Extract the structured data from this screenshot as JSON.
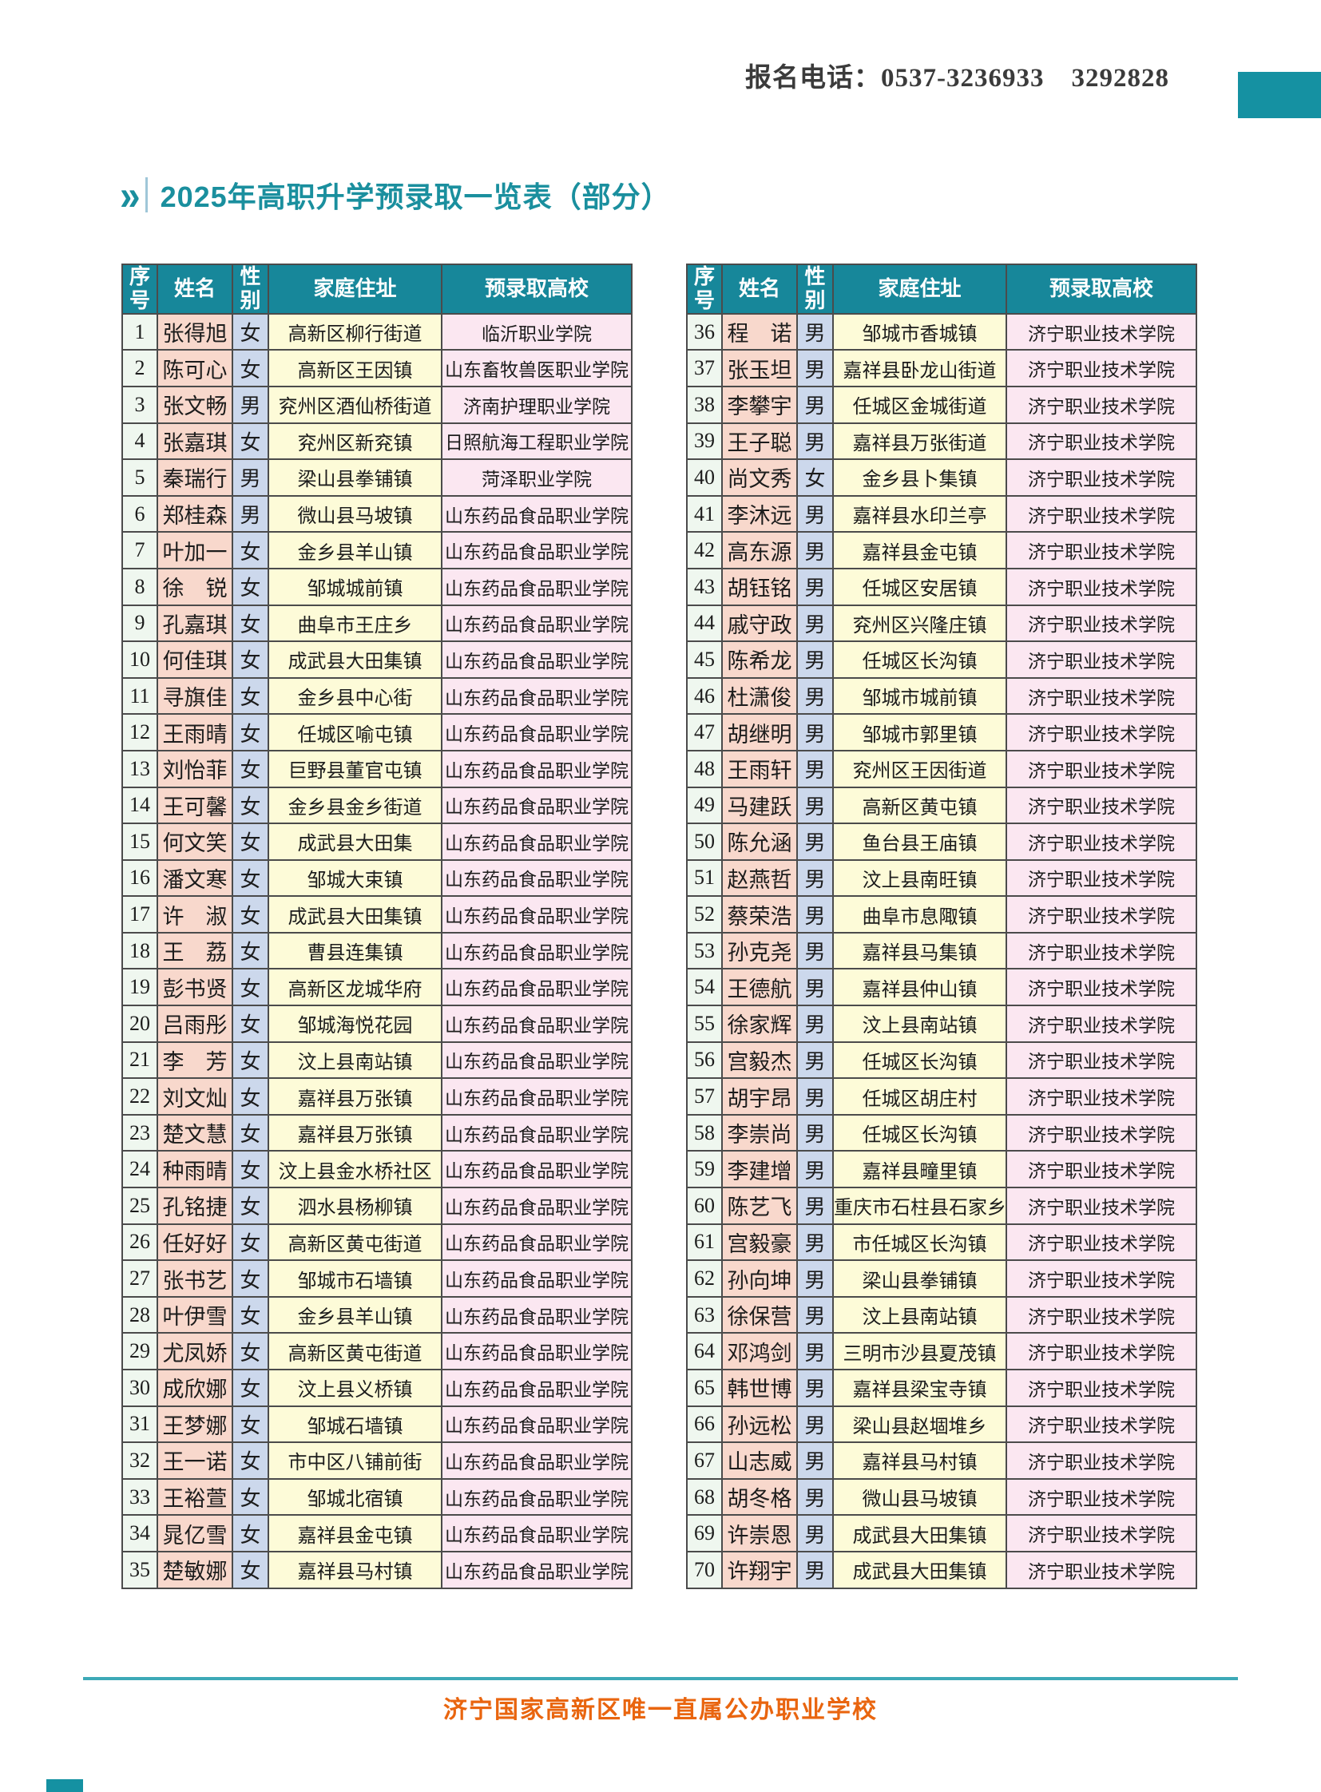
{
  "header": {
    "phone_label": "报名电话：0537-3236933　3292828"
  },
  "title": {
    "chevron_icon": "»",
    "text": "2025年高职升学预录取一览表（部分）"
  },
  "columns": [
    "序号",
    "姓名",
    "性别",
    "家庭住址",
    "预录取高校"
  ],
  "left_rows": [
    [
      "1",
      "张得旭",
      "女",
      "高新区柳行街道",
      "临沂职业学院"
    ],
    [
      "2",
      "陈可心",
      "女",
      "高新区王因镇",
      "山东畜牧兽医职业学院"
    ],
    [
      "3",
      "张文畅",
      "男",
      "兖州区酒仙桥街道",
      "济南护理职业学院"
    ],
    [
      "4",
      "张嘉琪",
      "女",
      "兖州区新兖镇",
      "日照航海工程职业学院"
    ],
    [
      "5",
      "秦瑞行",
      "男",
      "梁山县拳铺镇",
      "菏泽职业学院"
    ],
    [
      "6",
      "郑桂森",
      "男",
      "微山县马坡镇",
      "山东药品食品职业学院"
    ],
    [
      "7",
      "叶加一",
      "女",
      "金乡县羊山镇",
      "山东药品食品职业学院"
    ],
    [
      "8",
      "徐　锐",
      "女",
      "邹城城前镇",
      "山东药品食品职业学院"
    ],
    [
      "9",
      "孔嘉琪",
      "女",
      "曲阜市王庄乡",
      "山东药品食品职业学院"
    ],
    [
      "10",
      "何佳琪",
      "女",
      "成武县大田集镇",
      "山东药品食品职业学院"
    ],
    [
      "11",
      "寻旗佳",
      "女",
      "金乡县中心街",
      "山东药品食品职业学院"
    ],
    [
      "12",
      "王雨晴",
      "女",
      "任城区喻屯镇",
      "山东药品食品职业学院"
    ],
    [
      "13",
      "刘怡菲",
      "女",
      "巨野县董官屯镇",
      "山东药品食品职业学院"
    ],
    [
      "14",
      "王可馨",
      "女",
      "金乡县金乡街道",
      "山东药品食品职业学院"
    ],
    [
      "15",
      "何文笑",
      "女",
      "成武县大田集",
      "山东药品食品职业学院"
    ],
    [
      "16",
      "潘文寒",
      "女",
      "邹城大束镇",
      "山东药品食品职业学院"
    ],
    [
      "17",
      "许　淑",
      "女",
      "成武县大田集镇",
      "山东药品食品职业学院"
    ],
    [
      "18",
      "王　荔",
      "女",
      "曹县连集镇",
      "山东药品食品职业学院"
    ],
    [
      "19",
      "彭书贤",
      "女",
      "高新区龙城华府",
      "山东药品食品职业学院"
    ],
    [
      "20",
      "吕雨彤",
      "女",
      "邹城海悦花园",
      "山东药品食品职业学院"
    ],
    [
      "21",
      "李　芳",
      "女",
      "汶上县南站镇",
      "山东药品食品职业学院"
    ],
    [
      "22",
      "刘文灿",
      "女",
      "嘉祥县万张镇",
      "山东药品食品职业学院"
    ],
    [
      "23",
      "楚文慧",
      "女",
      "嘉祥县万张镇",
      "山东药品食品职业学院"
    ],
    [
      "24",
      "种雨晴",
      "女",
      "汶上县金水桥社区",
      "山东药品食品职业学院"
    ],
    [
      "25",
      "孔铭捷",
      "女",
      "泗水县杨柳镇",
      "山东药品食品职业学院"
    ],
    [
      "26",
      "任好好",
      "女",
      "高新区黄屯街道",
      "山东药品食品职业学院"
    ],
    [
      "27",
      "张书艺",
      "女",
      "邹城市石墙镇",
      "山东药品食品职业学院"
    ],
    [
      "28",
      "叶伊雪",
      "女",
      "金乡县羊山镇",
      "山东药品食品职业学院"
    ],
    [
      "29",
      "尤凤娇",
      "女",
      "高新区黄屯街道",
      "山东药品食品职业学院"
    ],
    [
      "30",
      "成欣娜",
      "女",
      "汶上县义桥镇",
      "山东药品食品职业学院"
    ],
    [
      "31",
      "王梦娜",
      "女",
      "邹城石墙镇",
      "山东药品食品职业学院"
    ],
    [
      "32",
      "王一诺",
      "女",
      "市中区八铺前街",
      "山东药品食品职业学院"
    ],
    [
      "33",
      "王裕萱",
      "女",
      "邹城北宿镇",
      "山东药品食品职业学院"
    ],
    [
      "34",
      "晁亿雪",
      "女",
      "嘉祥县金屯镇",
      "山东药品食品职业学院"
    ],
    [
      "35",
      "楚敏娜",
      "女",
      "嘉祥县马村镇",
      "山东药品食品职业学院"
    ]
  ],
  "right_rows": [
    [
      "36",
      "程　诺",
      "男",
      "邹城市香城镇",
      "济宁职业技术学院"
    ],
    [
      "37",
      "张玉坦",
      "男",
      "嘉祥县卧龙山街道",
      "济宁职业技术学院"
    ],
    [
      "38",
      "李攀宇",
      "男",
      "任城区金城街道",
      "济宁职业技术学院"
    ],
    [
      "39",
      "王子聪",
      "男",
      "嘉祥县万张街道",
      "济宁职业技术学院"
    ],
    [
      "40",
      "尚文秀",
      "女",
      "金乡县卜集镇",
      "济宁职业技术学院"
    ],
    [
      "41",
      "李沐远",
      "男",
      "嘉祥县水印兰亭",
      "济宁职业技术学院"
    ],
    [
      "42",
      "高东源",
      "男",
      "嘉祥县金屯镇",
      "济宁职业技术学院"
    ],
    [
      "43",
      "胡钰铭",
      "男",
      "任城区安居镇",
      "济宁职业技术学院"
    ],
    [
      "44",
      "戚守政",
      "男",
      "兖州区兴隆庄镇",
      "济宁职业技术学院"
    ],
    [
      "45",
      "陈希龙",
      "男",
      "任城区长沟镇",
      "济宁职业技术学院"
    ],
    [
      "46",
      "杜潇俊",
      "男",
      "邹城市城前镇",
      "济宁职业技术学院"
    ],
    [
      "47",
      "胡继明",
      "男",
      "邹城市郭里镇",
      "济宁职业技术学院"
    ],
    [
      "48",
      "王雨轩",
      "男",
      "兖州区王因街道",
      "济宁职业技术学院"
    ],
    [
      "49",
      "马建跃",
      "男",
      "高新区黄屯镇",
      "济宁职业技术学院"
    ],
    [
      "50",
      "陈允涵",
      "男",
      "鱼台县王庙镇",
      "济宁职业技术学院"
    ],
    [
      "51",
      "赵燕哲",
      "男",
      "汶上县南旺镇",
      "济宁职业技术学院"
    ],
    [
      "52",
      "蔡荣浩",
      "男",
      "曲阜市息陬镇",
      "济宁职业技术学院"
    ],
    [
      "53",
      "孙克尧",
      "男",
      "嘉祥县马集镇",
      "济宁职业技术学院"
    ],
    [
      "54",
      "王德航",
      "男",
      "嘉祥县仲山镇",
      "济宁职业技术学院"
    ],
    [
      "55",
      "徐家辉",
      "男",
      "汶上县南站镇",
      "济宁职业技术学院"
    ],
    [
      "56",
      "宫毅杰",
      "男",
      "任城区长沟镇",
      "济宁职业技术学院"
    ],
    [
      "57",
      "胡宇昂",
      "男",
      "任城区胡庄村",
      "济宁职业技术学院"
    ],
    [
      "58",
      "李崇尚",
      "男",
      "任城区长沟镇",
      "济宁职业技术学院"
    ],
    [
      "59",
      "李建增",
      "男",
      "嘉祥县疃里镇",
      "济宁职业技术学院"
    ],
    [
      "60",
      "陈艺飞",
      "男",
      "重庆市石柱县石家乡",
      "济宁职业技术学院"
    ],
    [
      "61",
      "宫毅豪",
      "男",
      "市任城区长沟镇",
      "济宁职业技术学院"
    ],
    [
      "62",
      "孙向坤",
      "男",
      "梁山县拳铺镇",
      "济宁职业技术学院"
    ],
    [
      "63",
      "徐保营",
      "男",
      "汶上县南站镇",
      "济宁职业技术学院"
    ],
    [
      "64",
      "邓鸿剑",
      "男",
      "三明市沙县夏茂镇",
      "济宁职业技术学院"
    ],
    [
      "65",
      "韩世博",
      "男",
      "嘉祥县梁宝寺镇",
      "济宁职业技术学院"
    ],
    [
      "66",
      "孙远松",
      "男",
      "梁山县赵堌堆乡",
      "济宁职业技术学院"
    ],
    [
      "67",
      "山志威",
      "男",
      "嘉祥县马村镇",
      "济宁职业技术学院"
    ],
    [
      "68",
      "胡冬格",
      "男",
      "微山县马坡镇",
      "济宁职业技术学院"
    ],
    [
      "69",
      "许崇恩",
      "男",
      "成武县大田集镇",
      "济宁职业技术学院"
    ],
    [
      "70",
      "许翔宇",
      "男",
      "成武县大田集镇",
      "济宁职业技术学院"
    ]
  ],
  "footer": {
    "text": "济宁国家高新区唯一直属公办职业学校"
  },
  "colors": {
    "teal_accent": "#1591a2",
    "table_header_bg": "#17879a",
    "title_teal": "#1a8f9e",
    "footer_orange": "#e9650f",
    "col_seq_bg": "#eff7ef",
    "col_name_bg": "#f8d8cc",
    "col_gender_bg": "#ccd8ec",
    "col_address_bg": "#fdfbd8",
    "col_college_bg": "#fbe7f1"
  }
}
